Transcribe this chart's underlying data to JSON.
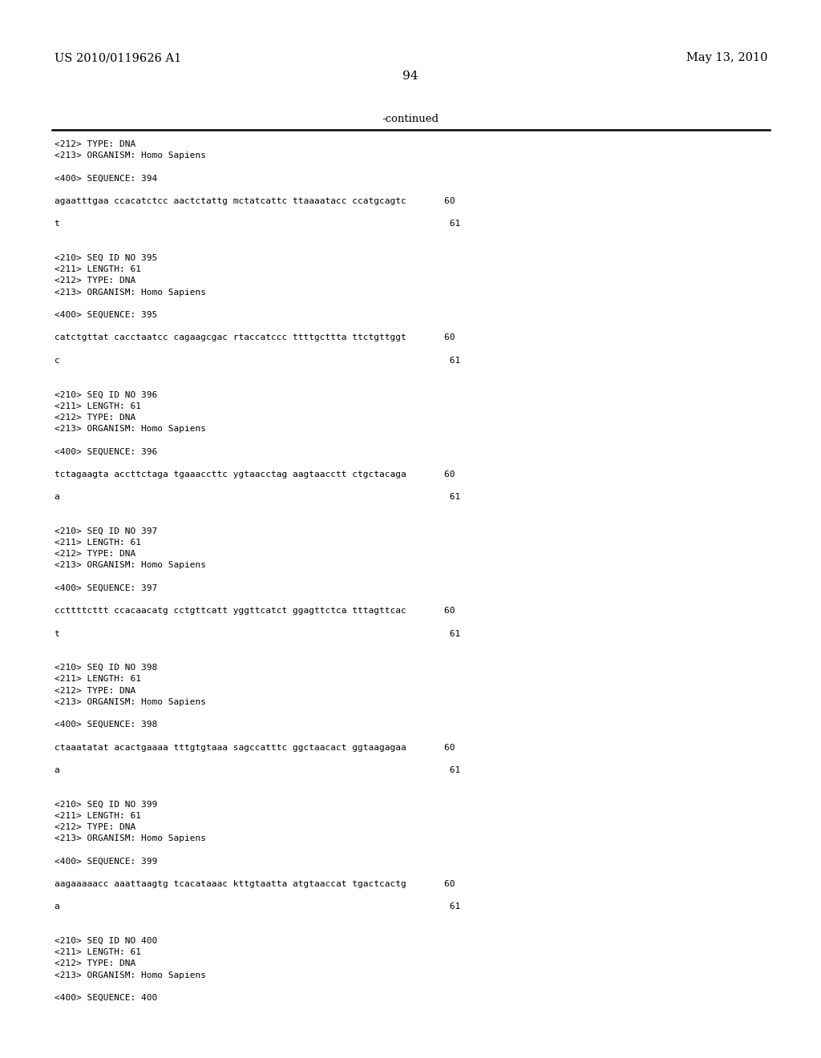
{
  "header_left": "US 2010/0119626 A1",
  "header_right": "May 13, 2010",
  "page_number": "94",
  "continued_text": "-continued",
  "bg_color": "#ffffff",
  "text_color": "#000000",
  "lines": [
    "<212> TYPE: DNA",
    "<213> ORGANISM: Homo Sapiens",
    "",
    "<400> SEQUENCE: 394",
    "",
    "agaatttgaa ccacatctcc aactctattg mctatcattc ttaaaatacc ccatgcagtc       60",
    "",
    "t                                                                        61",
    "",
    "",
    "<210> SEQ ID NO 395",
    "<211> LENGTH: 61",
    "<212> TYPE: DNA",
    "<213> ORGANISM: Homo Sapiens",
    "",
    "<400> SEQUENCE: 395",
    "",
    "catctgttat cacctaatcc cagaagcgac rtaccatccc ttttgcttta ttctgttggt       60",
    "",
    "c                                                                        61",
    "",
    "",
    "<210> SEQ ID NO 396",
    "<211> LENGTH: 61",
    "<212> TYPE: DNA",
    "<213> ORGANISM: Homo Sapiens",
    "",
    "<400> SEQUENCE: 396",
    "",
    "tctagaagta accttctaga tgaaaccttc ygtaacctag aagtaacctt ctgctacaga       60",
    "",
    "a                                                                        61",
    "",
    "",
    "<210> SEQ ID NO 397",
    "<211> LENGTH: 61",
    "<212> TYPE: DNA",
    "<213> ORGANISM: Homo Sapiens",
    "",
    "<400> SEQUENCE: 397",
    "",
    "ccttttcttt ccacaacatg cctgttcatt yggttcatct ggagttctca tttagttcac       60",
    "",
    "t                                                                        61",
    "",
    "",
    "<210> SEQ ID NO 398",
    "<211> LENGTH: 61",
    "<212> TYPE: DNA",
    "<213> ORGANISM: Homo Sapiens",
    "",
    "<400> SEQUENCE: 398",
    "",
    "ctaaatatat acactgaaaa tttgtgtaaa sagccatttc ggctaacact ggtaagagaa       60",
    "",
    "a                                                                        61",
    "",
    "",
    "<210> SEQ ID NO 399",
    "<211> LENGTH: 61",
    "<212> TYPE: DNA",
    "<213> ORGANISM: Homo Sapiens",
    "",
    "<400> SEQUENCE: 399",
    "",
    "aagaaaaacc aaattaagtg tcacataaac kttgtaatta atgtaaccat tgactcactg       60",
    "",
    "a                                                                        61",
    "",
    "",
    "<210> SEQ ID NO 400",
    "<211> LENGTH: 61",
    "<212> TYPE: DNA",
    "<213> ORGANISM: Homo Sapiens",
    "",
    "<400> SEQUENCE: 400"
  ]
}
